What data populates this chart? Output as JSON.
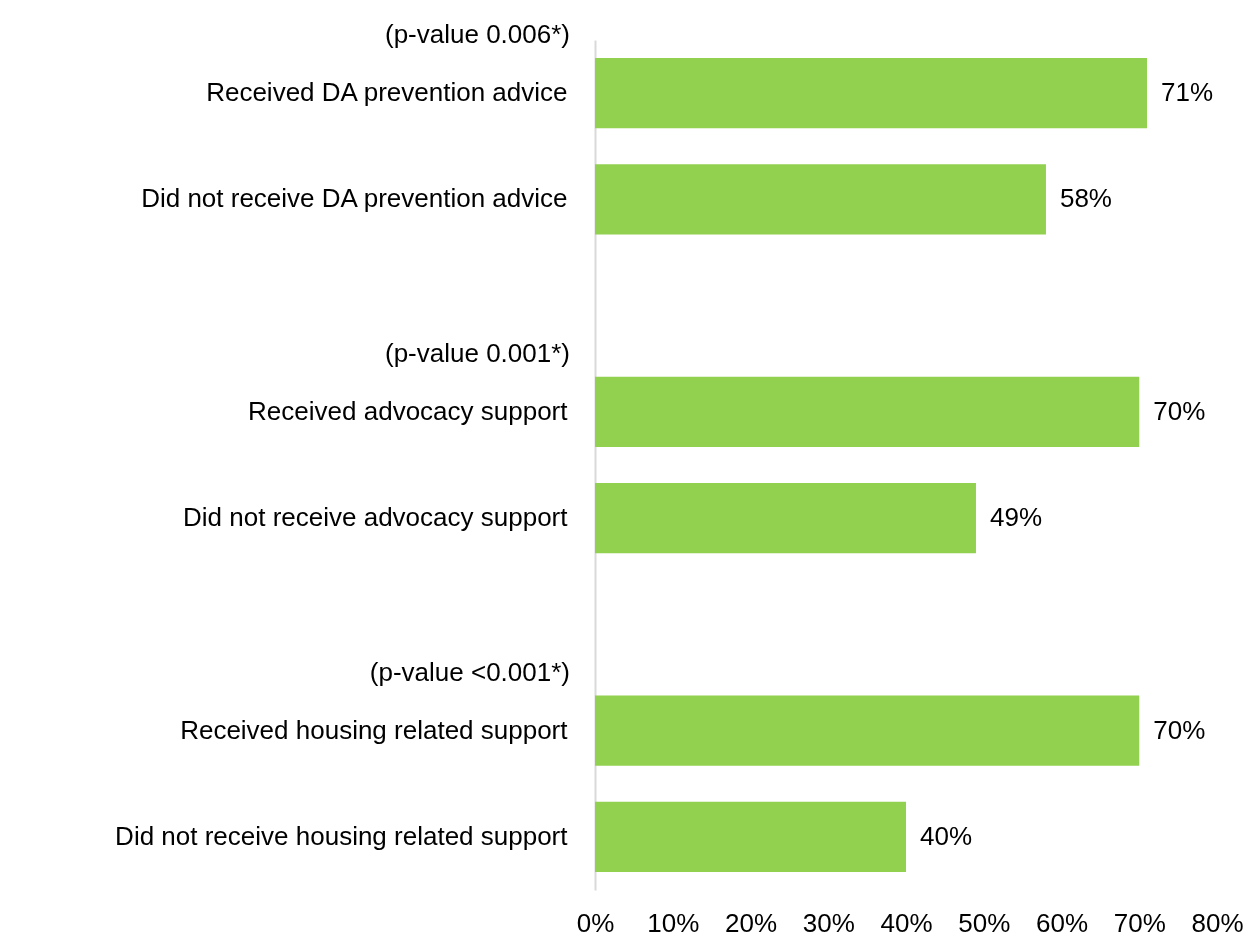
{
  "chart_data": {
    "type": "bar",
    "orientation": "horizontal",
    "categories": [
      "Received DA prevention advice",
      "Did not receive DA prevention advice",
      "Received advocacy support",
      "Did not receive advocacy support",
      "Received housing related support",
      "Did not receive housing related support"
    ],
    "values": [
      71,
      58,
      70,
      49,
      70,
      40
    ],
    "value_labels": [
      "71%",
      "58%",
      "70%",
      "49%",
      "70%",
      "40%"
    ],
    "color": "#92d050",
    "xlim": [
      0,
      80
    ],
    "xticks": [
      {
        "value": 0,
        "label": "0%"
      },
      {
        "value": 10,
        "label": "10%"
      },
      {
        "value": 20,
        "label": "20%"
      },
      {
        "value": 30,
        "label": "30%"
      },
      {
        "value": 40,
        "label": "40%"
      },
      {
        "value": 50,
        "label": "50%"
      },
      {
        "value": 60,
        "label": "60%"
      },
      {
        "value": 70,
        "label": "70%"
      },
      {
        "value": 80,
        "label": "80%"
      }
    ],
    "annotations": [
      "(p-value 0.006*)",
      "(p-value 0.001*)",
      "(p-value <0.001*)"
    ],
    "grid": false
  }
}
